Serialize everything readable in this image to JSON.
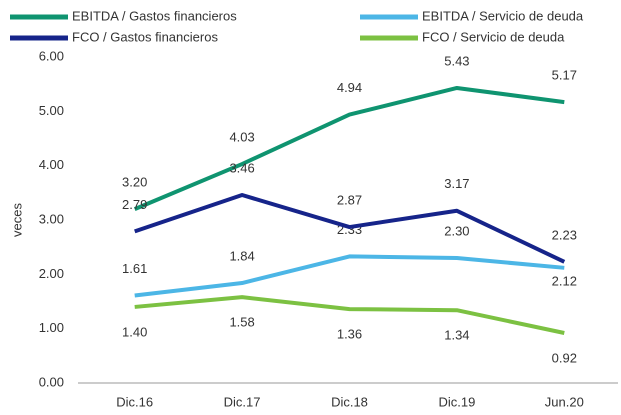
{
  "chart_data": {
    "type": "line",
    "y_label": "veces",
    "categories": [
      "Dic.16",
      "Dic.17",
      "Dic.18",
      "Dic.19",
      "Jun.20"
    ],
    "series": [
      {
        "name": "EBITDA / Gastos financieros",
        "color": "#0f9470",
        "values": [
          3.2,
          4.03,
          4.94,
          5.43,
          5.17
        ],
        "value_labels": [
          "3.20",
          "4.03",
          "4.94",
          "5.43",
          "5.17"
        ]
      },
      {
        "name": "EBITDA / Servicio de deuda",
        "color": "#4cb6e6",
        "values": [
          1.61,
          1.84,
          2.33,
          2.3,
          2.12
        ],
        "value_labels": [
          "1.61",
          "1.84",
          "2.33",
          "2.30",
          "2.12"
        ]
      },
      {
        "name": "FCO / Gastos financieros",
        "color": "#16248a",
        "values": [
          2.79,
          3.46,
          2.87,
          3.17,
          2.23
        ],
        "value_labels": [
          "2.79",
          "3.46",
          "2.87",
          "3.17",
          "2.23"
        ]
      },
      {
        "name": "FCO / Servicio de deuda",
        "color": "#7cc142",
        "values": [
          1.4,
          1.58,
          1.36,
          1.34,
          0.92
        ],
        "value_labels": [
          "1.40",
          "1.58",
          "1.36",
          "1.34",
          "0.92"
        ]
      }
    ],
    "ylim": [
      0,
      6
    ],
    "yticks": [
      {
        "value": 0,
        "label": "0.00"
      },
      {
        "value": 1,
        "label": "1.00"
      },
      {
        "value": 2,
        "label": "2.00"
      },
      {
        "value": 3,
        "label": "3.00"
      },
      {
        "value": 4,
        "label": "4.00"
      },
      {
        "value": 5,
        "label": "5.00"
      },
      {
        "value": 6,
        "label": "6.00"
      }
    ],
    "grid": false
  }
}
